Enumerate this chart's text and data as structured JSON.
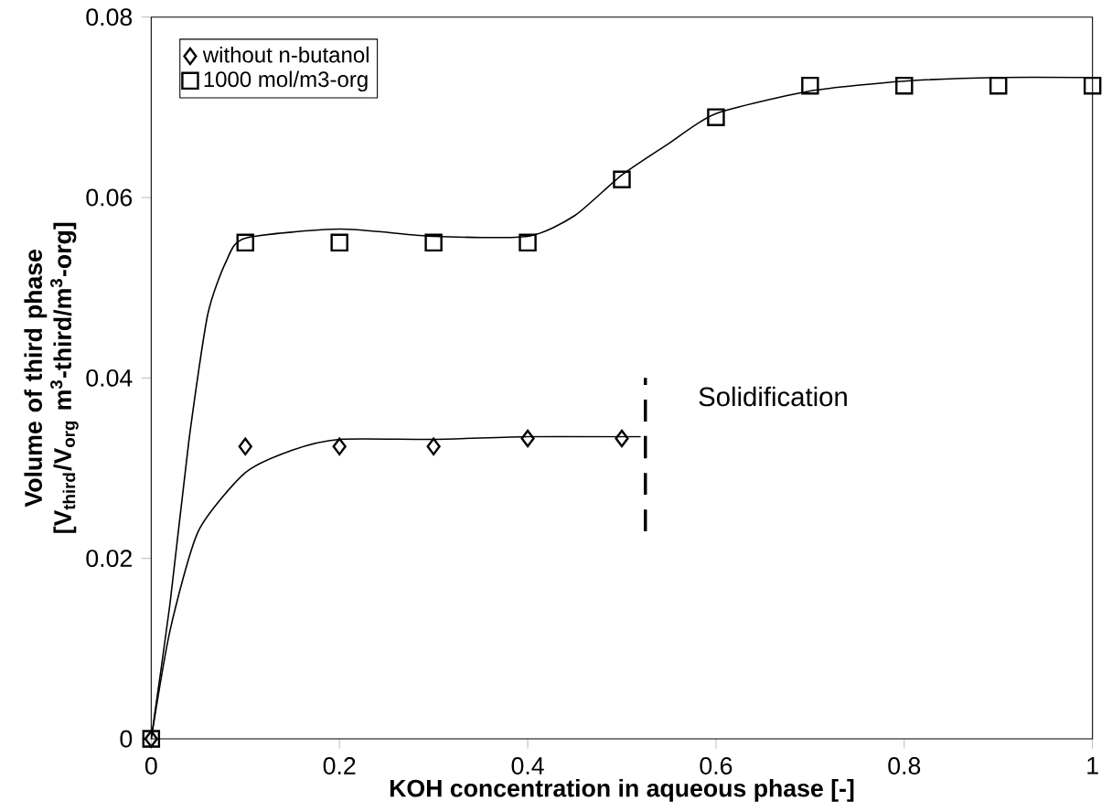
{
  "chart_data": {
    "type": "scatter",
    "xlabel": "KOH concentration in aqueous phase [-]",
    "ylabel": "Volume of third phase [V$_{third}$/V$_{org}$ m$^{3}$-third/m$^{3}$-org]",
    "xlim": [
      0,
      1
    ],
    "ylim": [
      0,
      0.08
    ],
    "xticks": [
      0,
      0.2,
      0.4,
      0.6,
      0.8,
      1
    ],
    "yticks": [
      0,
      0.02,
      0.04,
      0.06,
      0.08
    ],
    "legend": "top left",
    "grid": false,
    "annotations": [
      "Solidification"
    ],
    "series": [
      {
        "name": "without n-butanol",
        "marker": "diamond",
        "color": "#000000",
        "x": [
          0,
          0.1,
          0.2,
          0.3,
          0.4,
          0.5
        ],
        "values": [
          0,
          0.0324,
          0.0324,
          0.0324,
          0.0333,
          0.0333
        ]
      },
      {
        "name": "1000 mol/m3-org",
        "marker": "square",
        "color": "#000000",
        "x": [
          0,
          0.1,
          0.2,
          0.3,
          0.4,
          0.5,
          0.6,
          0.7,
          0.8,
          0.9,
          1.0
        ],
        "values": [
          0,
          0.055,
          0.055,
          0.055,
          0.055,
          0.062,
          0.0689,
          0.0724,
          0.0724,
          0.0724,
          0.0724
        ]
      },
      {
        "type": "line",
        "marker": "none",
        "line_style": "solid",
        "color": "#000000",
        "x": [
          0,
          0.02,
          0.05,
          0.1,
          0.15,
          0.2,
          0.3,
          0.4,
          0.5,
          0.52
        ],
        "values": [
          0,
          0.012,
          0.023,
          0.0295,
          0.032,
          0.0332,
          0.0332,
          0.0335,
          0.0335,
          0.0335
        ]
      },
      {
        "type": "line",
        "marker": "none",
        "line_style": "solid",
        "color": "#000000",
        "x": [
          0,
          0.02,
          0.04,
          0.06,
          0.08,
          0.1,
          0.2,
          0.3,
          0.4,
          0.45,
          0.5,
          0.55,
          0.6,
          0.7,
          0.8,
          0.9,
          1.0
        ],
        "values": [
          0,
          0.015,
          0.033,
          0.047,
          0.053,
          0.0555,
          0.0565,
          0.0557,
          0.0557,
          0.058,
          0.0625,
          0.066,
          0.0693,
          0.0718,
          0.0729,
          0.0733,
          0.0733
        ]
      },
      {
        "type": "line",
        "marker": "none",
        "line_style": "dashed",
        "color": "#000000",
        "x": [
          0.525,
          0.525
        ],
        "values": [
          0.023,
          0.04
        ]
      }
    ]
  }
}
